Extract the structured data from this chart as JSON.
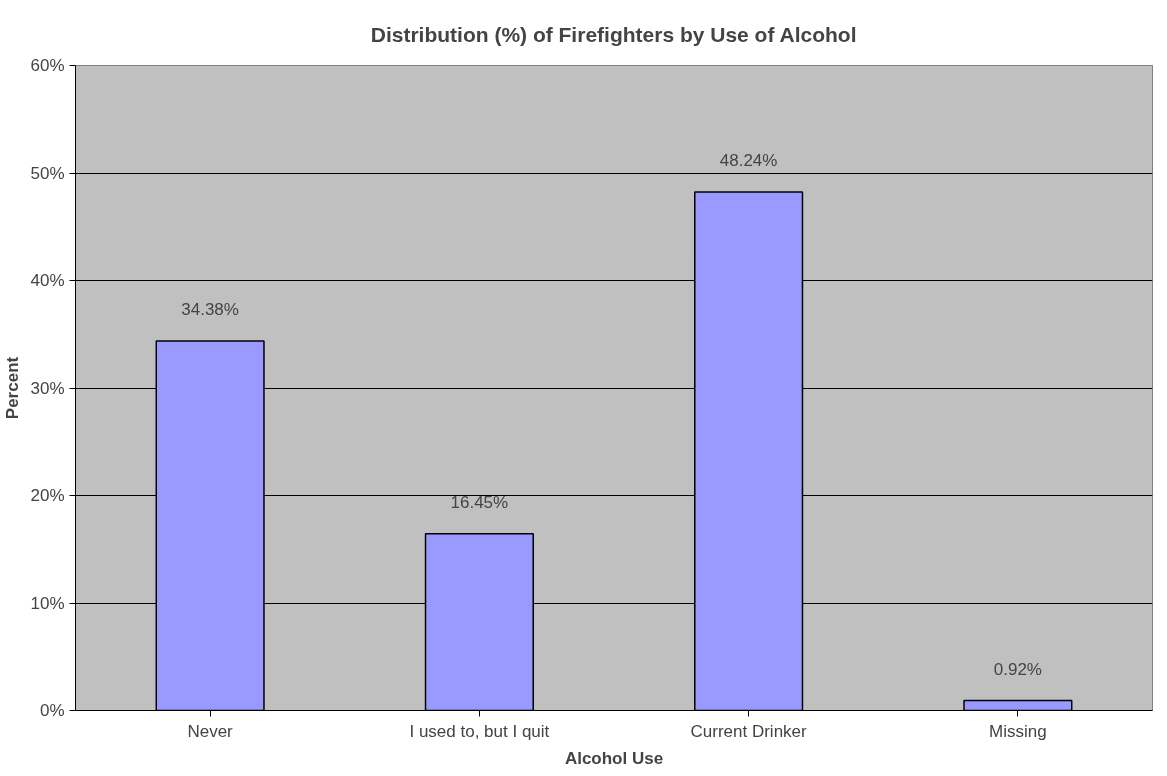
{
  "chart_data": {
    "type": "bar",
    "title": "Distribution (%) of Firefighters by Use of Alcohol",
    "xlabel": "Alcohol Use",
    "ylabel": "Percent",
    "categories": [
      "Never",
      "I used to, but I quit",
      "Current Drinker",
      "Missing"
    ],
    "values": [
      34.38,
      16.45,
      48.24,
      0.92
    ],
    "color": "#9999ff",
    "value_labels": [
      "34.38%",
      "16.45%",
      "48.24%",
      "0.92%"
    ],
    "ylim": [
      0,
      60
    ],
    "yticks": [
      {
        "value": 0,
        "label": "0%"
      },
      {
        "value": 10,
        "label": "10%"
      },
      {
        "value": 20,
        "label": "20%"
      },
      {
        "value": 30,
        "label": "30%"
      },
      {
        "value": 40,
        "label": "40%"
      },
      {
        "value": 50,
        "label": "50%"
      },
      {
        "value": 60,
        "label": "60%"
      }
    ],
    "grid": "y"
  }
}
